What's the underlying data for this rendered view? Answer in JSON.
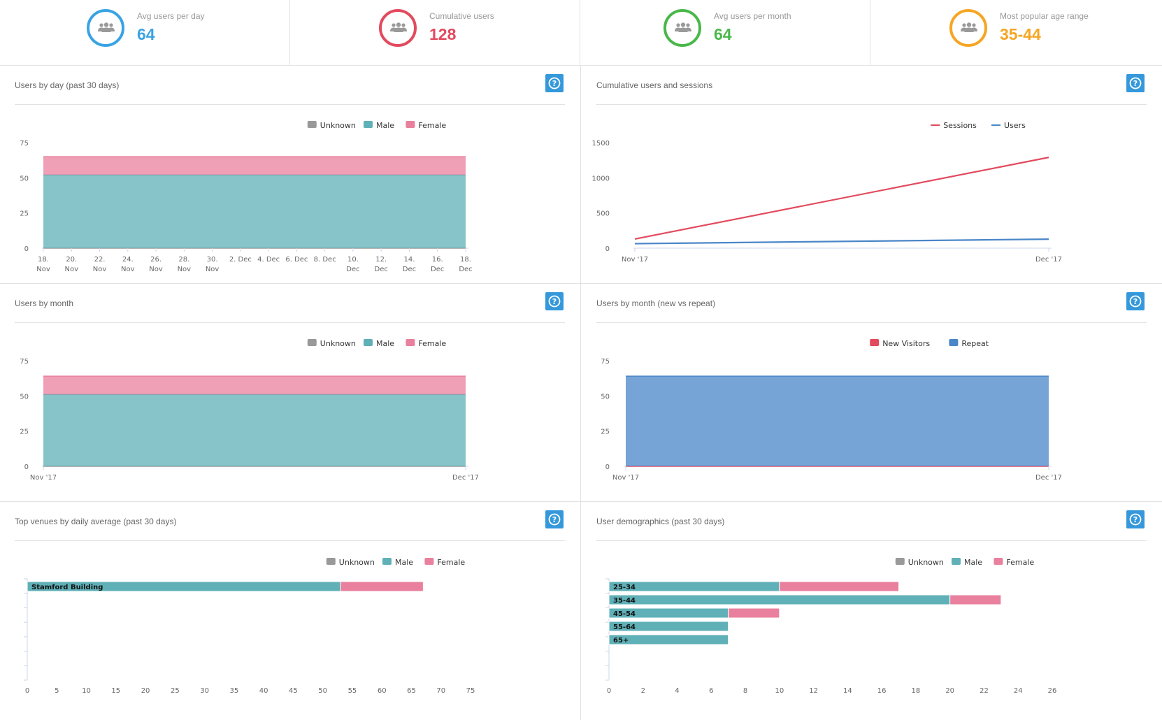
{
  "kpis": [
    {
      "label": "Avg users per day",
      "value": "64",
      "color": "#3aa3e3",
      "icon": "users-icon"
    },
    {
      "label": "Cumulative users",
      "value": "128",
      "color": "#e24a5e",
      "icon": "users-icon"
    },
    {
      "label": "Avg users per month",
      "value": "64",
      "color": "#49b84a",
      "icon": "users-icon"
    },
    {
      "label": "Most popular age range",
      "value": "35-44",
      "color": "#f5a623",
      "icon": "users-icon"
    }
  ],
  "panels": {
    "p1": {
      "title": "Users by day (past 30 days)"
    },
    "p2": {
      "title": "Cumulative users and sessions"
    },
    "p3": {
      "title": "Users by month"
    },
    "p4": {
      "title": "Users by month (new vs repeat)"
    },
    "p5": {
      "title": "Top venues by daily average (past 30 days)"
    },
    "p6": {
      "title": "User demographics (past 30 days)"
    }
  },
  "colors": {
    "unknown": "#999999",
    "male": "#5fb0b7",
    "female": "#e9809d",
    "sessions": "#e24a5e",
    "users": "#4a86c8",
    "new_visitors": "#e24a5e",
    "repeat": "#4a86c8",
    "help": "#3498db"
  },
  "chart_data": [
    {
      "id": "p1",
      "type": "area",
      "stacked": true,
      "title": "Users by day (past 30 days)",
      "x": [
        "18. Nov",
        "20. Nov",
        "22. Nov",
        "24. Nov",
        "26. Nov",
        "28. Nov",
        "30. Nov",
        "2. Dec",
        "4. Dec",
        "6. Dec",
        "8. Dec",
        "10. Dec",
        "12. Dec",
        "14. Dec",
        "16. Dec",
        "18. Dec"
      ],
      "series": [
        {
          "name": "Unknown",
          "values": [
            0,
            0,
            0,
            0,
            0,
            0,
            0,
            0,
            0,
            0,
            0,
            0,
            0,
            0,
            0,
            0
          ]
        },
        {
          "name": "Male",
          "values": [
            52,
            52,
            52,
            52,
            52,
            52,
            52,
            52,
            52,
            52,
            52,
            52,
            52,
            52,
            52,
            52
          ]
        },
        {
          "name": "Female",
          "values": [
            13,
            13,
            13,
            13,
            13,
            13,
            13,
            13,
            13,
            13,
            13,
            13,
            13,
            13,
            13,
            13
          ]
        }
      ],
      "yticks": [
        "0",
        "25",
        "50",
        "75"
      ],
      "ylim": [
        0,
        75
      ],
      "legend": "top-right"
    },
    {
      "id": "p2",
      "type": "line",
      "title": "Cumulative users and sessions",
      "x": [
        "Nov '17",
        "Dec '17"
      ],
      "series": [
        {
          "name": "Sessions",
          "values": [
            130,
            1290
          ]
        },
        {
          "name": "Users",
          "values": [
            64,
            128
          ]
        }
      ],
      "yticks": [
        "0",
        "500",
        "1000",
        "1500"
      ],
      "ylim": [
        0,
        1500
      ],
      "legend": "top-right"
    },
    {
      "id": "p3",
      "type": "area",
      "stacked": true,
      "title": "Users by month",
      "x": [
        "Nov '17",
        "Dec '17"
      ],
      "series": [
        {
          "name": "Unknown",
          "values": [
            0,
            0
          ]
        },
        {
          "name": "Male",
          "values": [
            51,
            51
          ]
        },
        {
          "name": "Female",
          "values": [
            13,
            13
          ]
        }
      ],
      "yticks": [
        "0",
        "25",
        "50",
        "75"
      ],
      "ylim": [
        0,
        75
      ],
      "legend": "top-right"
    },
    {
      "id": "p4",
      "type": "area",
      "stacked": true,
      "title": "Users by month (new vs repeat)",
      "x": [
        "Nov '17",
        "Dec '17"
      ],
      "series": [
        {
          "name": "New Visitors",
          "values": [
            0,
            0
          ]
        },
        {
          "name": "Repeat",
          "values": [
            64,
            64
          ]
        }
      ],
      "yticks": [
        "0",
        "25",
        "50",
        "75"
      ],
      "ylim": [
        0,
        75
      ],
      "legend": "top-right"
    },
    {
      "id": "p5",
      "type": "bar",
      "orientation": "horizontal",
      "stacked": true,
      "title": "Top venues by daily average (past 30 days)",
      "categories": [
        "Stamford Building"
      ],
      "series": [
        {
          "name": "Unknown",
          "values": [
            0
          ]
        },
        {
          "name": "Male",
          "values": [
            53
          ]
        },
        {
          "name": "Female",
          "values": [
            14
          ]
        }
      ],
      "xticks": [
        "0",
        "5",
        "10",
        "15",
        "20",
        "25",
        "30",
        "35",
        "40",
        "45",
        "50",
        "55",
        "60",
        "65",
        "70",
        "75"
      ],
      "xlim": [
        0,
        75
      ],
      "legend": "top-right"
    },
    {
      "id": "p6",
      "type": "bar",
      "orientation": "horizontal",
      "stacked": true,
      "title": "User demographics (past 30 days)",
      "categories": [
        "25-34",
        "35-44",
        "45-54",
        "55-64",
        "65+"
      ],
      "series": [
        {
          "name": "Unknown",
          "values": [
            0,
            0,
            0,
            0,
            0
          ]
        },
        {
          "name": "Male",
          "values": [
            10,
            20,
            7,
            7,
            7
          ]
        },
        {
          "name": "Female",
          "values": [
            7,
            3,
            3,
            0,
            0
          ]
        }
      ],
      "xticks": [
        "0",
        "2",
        "4",
        "6",
        "8",
        "10",
        "12",
        "14",
        "16",
        "18",
        "20",
        "22",
        "24",
        "26"
      ],
      "xlim": [
        0,
        26
      ],
      "legend": "top-right"
    }
  ]
}
